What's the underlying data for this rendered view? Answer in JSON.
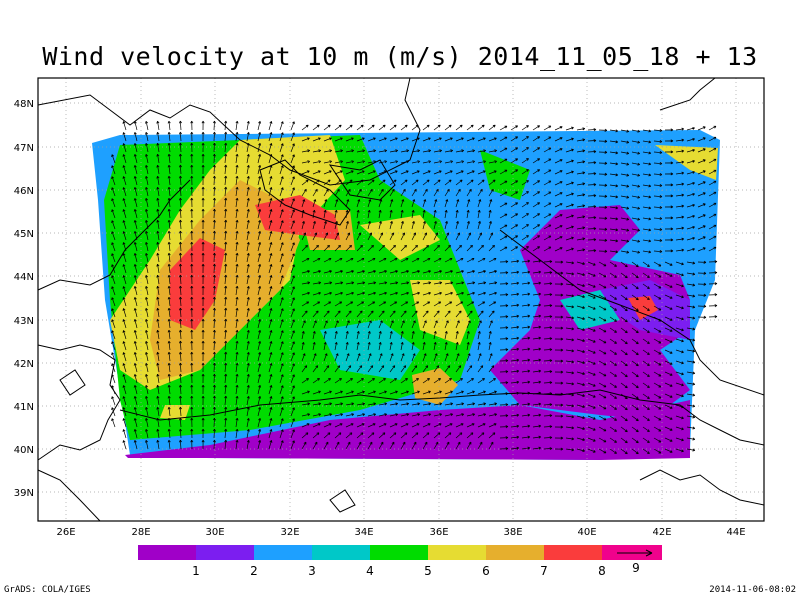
{
  "title": "Wind velocity at 10 m (m/s) 2014_11_05_18 + 13",
  "lat_labels": [
    "48N",
    "47N",
    "46N",
    "45N",
    "44N",
    "43N",
    "42N",
    "41N",
    "40N",
    "39N"
  ],
  "lon_labels": [
    "26E",
    "28E",
    "30E",
    "32E",
    "34E",
    "36E",
    "38E",
    "40E",
    "42E",
    "44E"
  ],
  "colorbar": {
    "colors": [
      "#a000c8",
      "#7c1ef0",
      "#1ea0ff",
      "#00c8c8",
      "#00dc00",
      "#e6dc32",
      "#e6af2d",
      "#fa3c3c",
      "#f0028c"
    ],
    "labels": [
      "1",
      "2",
      "3",
      "4",
      "5",
      "6",
      "7",
      "8",
      "9"
    ]
  },
  "chart_data": {
    "type": "heatmap",
    "title": "Wind velocity at 10 m (m/s) 2014_11_05_18 + 13",
    "units": "m/s",
    "xlim": [
      25.5,
      44.5
    ],
    "ylim": [
      38.3,
      48.5
    ],
    "x_ticks": [
      26,
      28,
      30,
      32,
      34,
      36,
      38,
      40,
      42,
      44
    ],
    "y_ticks": [
      39,
      40,
      41,
      42,
      43,
      44,
      45,
      46,
      47,
      48
    ],
    "levels": [
      1,
      2,
      3,
      4,
      5,
      6,
      7,
      8,
      9
    ],
    "overlay": "wind vectors",
    "grid": "dotted"
  },
  "footer": {
    "left": "GrADS: COLA/IGES",
    "right": "2014-11-06-08:02"
  }
}
